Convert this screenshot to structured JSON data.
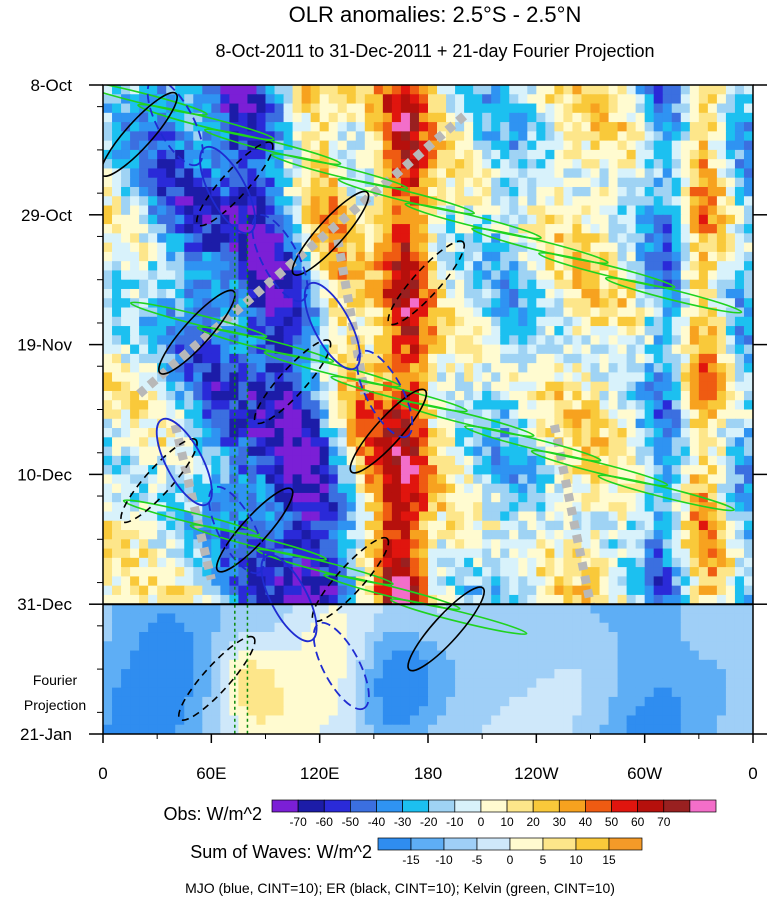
{
  "chart_data": {
    "type": "heatmap",
    "title": "OLR anomalies: 2.5°S - 2.5°N",
    "subtitle": "8-Oct-2011 to 31-Dec-2011 + 21-day Fourier Projection",
    "x_tick_labels": [
      "0",
      "60E",
      "120E",
      "180",
      "120W",
      "60W",
      "0"
    ],
    "x_tick_degrees": [
      0,
      60,
      120,
      180,
      240,
      300,
      360
    ],
    "xlim": [
      0,
      360
    ],
    "y_tick_labels": [
      "8-Oct",
      "29-Oct",
      "19-Nov",
      "10-Dec",
      "31-Dec",
      "21-Jan"
    ],
    "y_tick_days": [
      0,
      21,
      42,
      63,
      84,
      105
    ],
    "ylim_days": [
      0,
      105
    ],
    "projection_label_lines": [
      "Fourier",
      "Projection"
    ],
    "projection_start_day": 84,
    "obs_colorbar": {
      "label": "Obs: W/m^2",
      "tick_labels": [
        "-70",
        "-60",
        "-50",
        "-40",
        "-30",
        "-20",
        "-10",
        "0",
        "10",
        "20",
        "30",
        "40",
        "50",
        "60",
        "70"
      ],
      "colors": [
        "#7b1fd6",
        "#1c1ca8",
        "#2a2ad8",
        "#3b6fe0",
        "#2f93f2",
        "#1cc0f0",
        "#9fd3f4",
        "#d8f2fb",
        "#fffbd0",
        "#fde68a",
        "#f9c93a",
        "#f7a21f",
        "#ef5b12",
        "#e0150e",
        "#b6100c",
        "#992020",
        "#f36ec9"
      ]
    },
    "waves_colorbar": {
      "label": "Sum of Waves: W/m^2",
      "tick_labels": [
        "-15",
        "-10",
        "-5",
        "0",
        "5",
        "10",
        "15"
      ],
      "colors": [
        "#2f8df0",
        "#5eaef5",
        "#9fcff7",
        "#cfe8fa",
        "#fffbd0",
        "#fde68a",
        "#f9c93a",
        "#f49a28"
      ]
    },
    "legend_text": "MJO (blue, CINT=10); ER (black, CINT=10); Kelvin (green, CINT=10)",
    "contour_colors": {
      "mjo": "#1f2bd1",
      "er": "#000000",
      "kelvin": "#1fd31f"
    },
    "wet_bands": [
      {
        "lon": 28,
        "width": 50,
        "tilt": 12,
        "strength": -45
      },
      {
        "lon": 72,
        "width": 40,
        "tilt": 10,
        "strength": -65
      },
      {
        "lon": 220,
        "width": 35,
        "tilt": 0,
        "strength": -18
      },
      {
        "lon": 308,
        "width": 24,
        "tilt": 0,
        "strength": -35
      },
      {
        "lon": 355,
        "width": 22,
        "tilt": 0,
        "strength": -25
      }
    ],
    "dry_bands": [
      {
        "lon": 110,
        "width": 25,
        "tilt": 10,
        "strength": 30
      },
      {
        "lon": 165,
        "width": 28,
        "tilt": 0,
        "strength": 60
      },
      {
        "lon": 265,
        "width": 38,
        "tilt": 0,
        "strength": 12
      },
      {
        "lon": 330,
        "width": 22,
        "tilt": 0,
        "strength": 30
      }
    ]
  }
}
